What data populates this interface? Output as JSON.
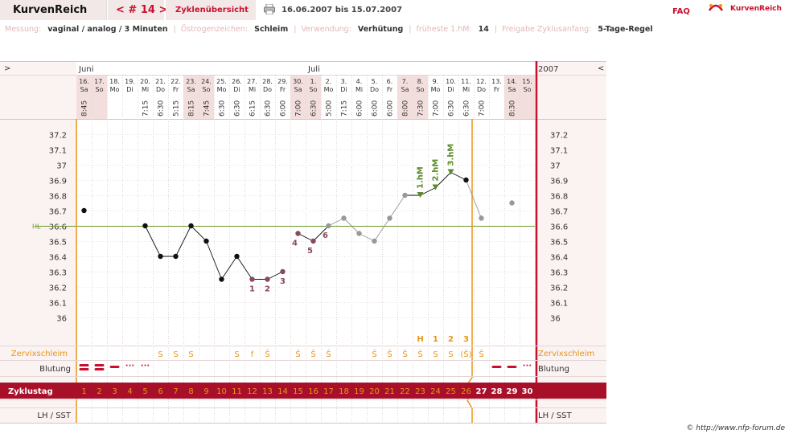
{
  "app": {
    "title": "KurvenReich",
    "cycle": "< # 14 >",
    "overview": "Zyklenübersicht",
    "date_range": "16.06.2007 bis 15.07.2007",
    "faq": "FAQ",
    "logo_text": "KurvenReich",
    "copyright": "© http://www.nfp-forum.de"
  },
  "info": [
    {
      "label": "Messung:",
      "value": "vaginal / analog / 3 Minuten"
    },
    {
      "label": "Östrogenzeichen:",
      "value": "Schleim"
    },
    {
      "label": "Verwendung:",
      "value": "Verhütung"
    },
    {
      "label": "früheste 1.hM:",
      "value": "14"
    },
    {
      "label": "Freigabe Zyklusanfang:",
      "value": "5-Tage-Regel"
    }
  ],
  "nav": {
    "prev": ">",
    "next": "<",
    "year": "2007"
  },
  "months": [
    {
      "label": "Juni",
      "col": 0
    },
    {
      "label": "Juli",
      "col": 15
    }
  ],
  "days": [
    {
      "d": "16.",
      "w": "Sa",
      "t": "8:45",
      "wk": true
    },
    {
      "d": "17.",
      "w": "So",
      "t": "",
      "wk": true
    },
    {
      "d": "18.",
      "w": "Mo",
      "t": "",
      "wk": false
    },
    {
      "d": "19.",
      "w": "Di",
      "t": "",
      "wk": false
    },
    {
      "d": "20.",
      "w": "Mi",
      "t": "7:15",
      "wk": false
    },
    {
      "d": "21.",
      "w": "Do",
      "t": "6:30",
      "wk": false
    },
    {
      "d": "22.",
      "w": "Fr",
      "t": "5:15",
      "wk": false
    },
    {
      "d": "23.",
      "w": "Sa",
      "t": "8:15",
      "wk": true
    },
    {
      "d": "24.",
      "w": "So",
      "t": "7:45",
      "wk": true
    },
    {
      "d": "25.",
      "w": "Mo",
      "t": "6:30",
      "wk": false
    },
    {
      "d": "26.",
      "w": "Di",
      "t": "6:30",
      "wk": false
    },
    {
      "d": "27.",
      "w": "Mi",
      "t": "6:15",
      "wk": false
    },
    {
      "d": "28.",
      "w": "Do",
      "t": "6:30",
      "wk": false
    },
    {
      "d": "29.",
      "w": "Fr",
      "t": "6:00",
      "wk": false
    },
    {
      "d": "30.",
      "w": "Sa",
      "t": "7:00",
      "wk": true
    },
    {
      "d": "1.",
      "w": "So",
      "t": "6:30",
      "wk": true
    },
    {
      "d": "2.",
      "w": "Mo",
      "t": "5:00",
      "wk": false
    },
    {
      "d": "3.",
      "w": "Di",
      "t": "7:15",
      "wk": false
    },
    {
      "d": "4.",
      "w": "Mi",
      "t": "6:00",
      "wk": false
    },
    {
      "d": "5.",
      "w": "Do",
      "t": "6:00",
      "wk": false
    },
    {
      "d": "6.",
      "w": "Fr",
      "t": "6:00",
      "wk": false
    },
    {
      "d": "7.",
      "w": "Sa",
      "t": "8:00",
      "wk": true
    },
    {
      "d": "8.",
      "w": "So",
      "t": "7:30",
      "wk": true
    },
    {
      "d": "9.",
      "w": "Mo",
      "t": "7:00",
      "wk": false
    },
    {
      "d": "10.",
      "w": "Di",
      "t": "6:30",
      "wk": false
    },
    {
      "d": "11.",
      "w": "Mi",
      "t": "6:30",
      "wk": false
    },
    {
      "d": "12.",
      "w": "Do",
      "t": "7:00",
      "wk": false
    },
    {
      "d": "13.",
      "w": "Fr",
      "t": "",
      "wk": false
    },
    {
      "d": "14.",
      "w": "Sa",
      "t": "8:30",
      "wk": true
    },
    {
      "d": "15.",
      "w": "So",
      "t": "",
      "wk": true
    }
  ],
  "chart_data": {
    "type": "line",
    "ylim": [
      35.9,
      37.2
    ],
    "yticks": [
      "37.2",
      "37.1",
      "37",
      "36.9",
      "36.8",
      "36.7",
      "36.6",
      "36.5",
      "36.4",
      "36.3",
      "36.2",
      "36.1",
      "36"
    ],
    "coverline_label": "HL",
    "coverline": 36.6,
    "temps": [
      36.7,
      null,
      null,
      null,
      36.6,
      36.4,
      36.4,
      36.6,
      36.5,
      36.25,
      36.4,
      36.25,
      36.25,
      36.3,
      36.55,
      36.5,
      36.6,
      36.65,
      36.55,
      36.5,
      36.65,
      36.8,
      36.8,
      36.85,
      36.95,
      36.9,
      36.65,
      null,
      36.75,
      null
    ],
    "connected": [
      [
        4,
        13
      ],
      [
        14,
        16
      ],
      [
        21,
        25
      ]
    ],
    "gray_segments": [
      [
        16,
        21
      ],
      [
        25,
        26
      ]
    ],
    "low_labels": [
      {
        "day": 11,
        "text": "1"
      },
      {
        "day": 12,
        "text": "2"
      },
      {
        "day": 13,
        "text": "3"
      },
      {
        "day": 14,
        "text": "4"
      },
      {
        "day": 15,
        "text": "5"
      },
      {
        "day": 16,
        "text": "6"
      }
    ],
    "high_labels": [
      {
        "day": 22,
        "text": "1.hM"
      },
      {
        "day": 23,
        "text": "2.hM"
      },
      {
        "day": 24,
        "text": "3.hM"
      }
    ]
  },
  "rows": {
    "cervix_label": "Zervixschleim",
    "bleeding_label": "Blutung",
    "cycle_label": "Zyklustag",
    "lh_label": "LH / SST",
    "cervix": [
      "",
      "",
      "",
      "",
      "",
      "S",
      "S",
      "S",
      "",
      "",
      "S",
      "f",
      "Ŝ",
      "",
      "Ŝ",
      "Ŝ",
      "Ŝ",
      "",
      "",
      "Ŝ",
      "Ŝ",
      "Ŝ",
      "Ŝ",
      "S",
      "S",
      "(Ŝ)",
      "Ŝ",
      "",
      "",
      ""
    ],
    "cervix_peak": [
      {
        "day": 22,
        "text": "H"
      },
      {
        "day": 23,
        "text": "1"
      },
      {
        "day": 24,
        "text": "2"
      },
      {
        "day": 25,
        "text": "3"
      }
    ],
    "bleeding": [
      "heavy",
      "heavy",
      "medium",
      "light",
      "light",
      "",
      "",
      "",
      "",
      "",
      "",
      "",
      "",
      "",
      "",
      "",
      "",
      "",
      "",
      "",
      "",
      "",
      "",
      "",
      "",
      "",
      "",
      "medium",
      "medium",
      "light"
    ],
    "cycle_days": [
      1,
      2,
      3,
      4,
      5,
      6,
      7,
      8,
      9,
      10,
      11,
      12,
      13,
      14,
      15,
      16,
      17,
      18,
      19,
      20,
      21,
      22,
      23,
      24,
      25,
      26,
      27,
      28,
      29,
      30
    ]
  },
  "colors": {
    "accent": "#c8102e",
    "orange": "#e8951a",
    "cycle_bar": "#a8102a",
    "coverline": "#6a9a2a",
    "weekend": "#f3dede",
    "pink_bg": "#fbf2f2",
    "green": "#5a8a2a",
    "lowlabel": "#8a4a5a"
  }
}
